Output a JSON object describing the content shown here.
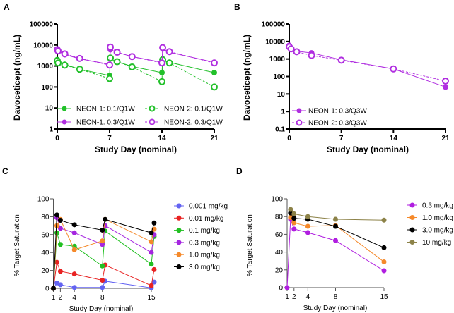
{
  "chart_data": [
    {
      "panel": "A",
      "type": "line",
      "xlabel": "Study Day (nominal)",
      "ylabel": "Davoceticept (ng/mL)",
      "yscale": "log",
      "xlim": [
        0,
        21
      ],
      "ylim": [
        1,
        100000
      ],
      "xticks": [
        "0",
        "7",
        "14",
        "21"
      ],
      "yticks": [
        "1",
        "10",
        "100",
        "1000",
        "10000",
        "100000"
      ],
      "legend_position": "bottom-inside",
      "series": [
        {
          "name": "NEON-1: 0.1/Q1W",
          "color": "#22c02a",
          "marker": "filled",
          "dashed": false,
          "x": [
            0,
            0.1,
            1,
            3,
            7,
            7.1,
            8,
            10,
            14,
            14.1,
            15,
            21
          ],
          "y": [
            2000,
            1500,
            1200,
            700,
            350,
            2200,
            1600,
            950,
            480,
            1800,
            1500,
            480
          ]
        },
        {
          "name": "NEON-2:  0.1/Q1W",
          "color": "#22c02a",
          "marker": "open",
          "dashed": true,
          "x": [
            0,
            0.1,
            1,
            3,
            7,
            7.1,
            8,
            10,
            14,
            14.1,
            15,
            21
          ],
          "y": [
            1800,
            1400,
            1100,
            700,
            250,
            2400,
            1600,
            900,
            180,
            2000,
            1400,
            100
          ]
        },
        {
          "name": "NEON-1: 0.3/Q1W",
          "color": "#b02ee0",
          "marker": "filled",
          "dashed": false,
          "x": [
            0,
            0.1,
            1,
            3,
            7,
            7.1,
            8,
            10,
            14,
            14.1,
            15,
            21
          ],
          "y": [
            5500,
            5000,
            3500,
            2200,
            1200,
            6000,
            4500,
            2800,
            1500,
            6500,
            4500,
            1500
          ]
        },
        {
          "name": "NEON-2:  0.3/Q1W",
          "color": "#b02ee0",
          "marker": "open",
          "dashed": true,
          "x": [
            0,
            0.1,
            1,
            3,
            7,
            7.1,
            8,
            10,
            14,
            14.1,
            15,
            21
          ],
          "y": [
            6000,
            5200,
            3800,
            2300,
            1100,
            8000,
            4500,
            2800,
            1400,
            7500,
            4800,
            1400
          ]
        }
      ]
    },
    {
      "panel": "B",
      "type": "line",
      "xlabel": "Study Day (nominal)",
      "ylabel": "Davoceticept (ng/mL)",
      "yscale": "log",
      "xlim": [
        0,
        21
      ],
      "ylim": [
        0.1,
        100000
      ],
      "xticks": [
        "0",
        "7",
        "14",
        "21"
      ],
      "yticks": [
        "0.1",
        "1",
        "10",
        "100",
        "1000",
        "10000",
        "100000"
      ],
      "legend_position": "bottom-left-inside",
      "series": [
        {
          "name": "NEON-1: 0.3/Q3W",
          "color": "#b02ee0",
          "marker": "filled",
          "dashed": false,
          "x": [
            0,
            0.1,
            0.25,
            1,
            3,
            7,
            14,
            21
          ],
          "y": [
            6000,
            4500,
            4000,
            2800,
            2200,
            900,
            270,
            25
          ]
        },
        {
          "name": "NEON-2: 0.3/Q3W",
          "color": "#b02ee0",
          "marker": "open",
          "dashed": true,
          "x": [
            0,
            0.25,
            1,
            3,
            7,
            14,
            21
          ],
          "y": [
            5000,
            3800,
            2600,
            1600,
            850,
            270,
            55
          ]
        }
      ]
    },
    {
      "panel": "C",
      "type": "line",
      "xlabel": "Study Day (nominal)",
      "ylabel": "% Target Saturation",
      "xlim": [
        1,
        15
      ],
      "ylim": [
        0,
        100
      ],
      "xticks": [
        "1",
        "2",
        "4",
        "8",
        "15"
      ],
      "yticks": [
        "0",
        "20",
        "40",
        "60",
        "80",
        "100"
      ],
      "legend_position": "right",
      "series": [
        {
          "name": "0.001 mg/kg",
          "color": "#6363f2",
          "x": [
            1,
            1.5,
            2,
            4,
            8,
            8.4,
            15,
            15.4
          ],
          "y": [
            0,
            6,
            4,
            1,
            1,
            8,
            0.5,
            7
          ]
        },
        {
          "name": "0.01 mg/kg",
          "color": "#e82222",
          "x": [
            1,
            1.5,
            2,
            4,
            8,
            8.4,
            15,
            15.4
          ],
          "y": [
            0,
            29,
            19,
            16,
            9,
            26,
            3,
            21
          ]
        },
        {
          "name": "0.1 mg/kg",
          "color": "#22c022",
          "x": [
            1,
            1.5,
            2,
            4,
            8,
            8.4,
            15,
            15.4
          ],
          "y": [
            0,
            62,
            49,
            47,
            25,
            64,
            27,
            58
          ]
        },
        {
          "name": "0.3 mg/kg",
          "color": "#a526e0",
          "x": [
            1,
            1.5,
            2,
            4,
            8,
            8.4,
            15,
            15.4
          ],
          "y": [
            0,
            79,
            67,
            62,
            49,
            70,
            40,
            60
          ]
        },
        {
          "name": "1.0 mg/kg",
          "color": "#f5892a",
          "x": [
            1,
            1.5,
            2,
            4,
            8,
            8.4,
            15,
            15.4
          ],
          "y": [
            0,
            70,
            77,
            43,
            53,
            77,
            52,
            66
          ]
        },
        {
          "name": "3.0 mg/kg",
          "color": "#000000",
          "x": [
            1,
            1.5,
            2,
            4,
            8,
            8.4,
            15,
            15.4
          ],
          "y": [
            0,
            82,
            76,
            71,
            65,
            77,
            62,
            73
          ]
        }
      ]
    },
    {
      "panel": "D",
      "type": "line",
      "xlabel": "Study Day (nominal)",
      "ylabel": "% Target Saturation",
      "xlim": [
        1,
        15
      ],
      "ylim": [
        0,
        100
      ],
      "xticks": [
        "1",
        "2",
        "4",
        "8",
        "15"
      ],
      "yticks": [
        "0",
        "20",
        "40",
        "60",
        "80",
        "100"
      ],
      "legend_position": "right",
      "series": [
        {
          "name": "0.3 mg/kg",
          "color": "#b01ee0",
          "x": [
            1,
            1.5,
            2,
            4,
            8,
            15
          ],
          "y": [
            0,
            77,
            66,
            62,
            53,
            19
          ]
        },
        {
          "name": "1.0 mg/kg",
          "color": "#f5892a",
          "x": [
            1.5,
            2,
            4,
            8,
            15
          ],
          "y": [
            79,
            73,
            69,
            70,
            29
          ]
        },
        {
          "name": "3.0 mg/kg",
          "color": "#000000",
          "x": [
            1.5,
            2,
            4,
            8,
            15
          ],
          "y": [
            84,
            78,
            77,
            69,
            45
          ]
        },
        {
          "name": "10 mg/kg",
          "color": "#8c8248",
          "x": [
            1.5,
            2,
            4,
            8,
            15
          ],
          "y": [
            88,
            83,
            80,
            77,
            76
          ]
        }
      ]
    }
  ]
}
